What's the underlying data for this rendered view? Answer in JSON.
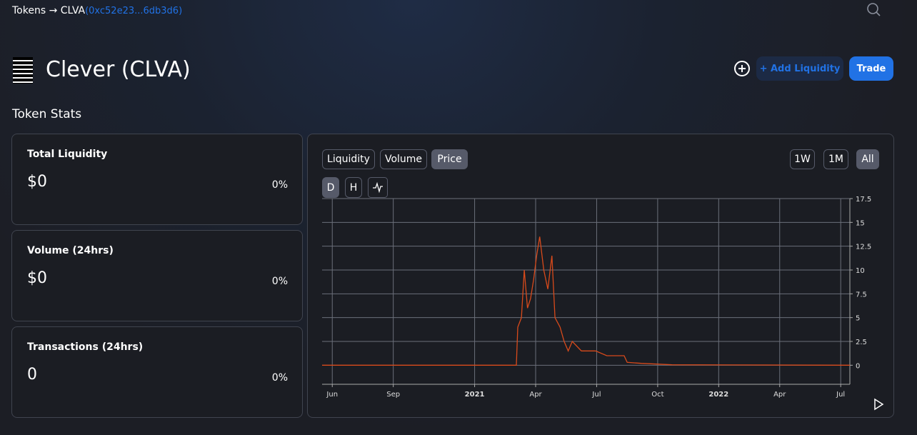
{
  "breadcrumb": {
    "root": "Tokens",
    "arrow": "→",
    "token": "CLVA",
    "address": "(0xc52e23...6db3d6)"
  },
  "header": {
    "title": "Clever (CLVA)",
    "add_liquidity": "+ Add Liquidity",
    "trade": "Trade"
  },
  "section_title": "Token Stats",
  "stats": [
    {
      "label": "Total Liquidity",
      "value": "$0",
      "change": "0%"
    },
    {
      "label": "Volume (24hrs)",
      "value": "$0",
      "change": "0%"
    },
    {
      "label": "Transactions (24hrs)",
      "value": "0",
      "change": "0%"
    }
  ],
  "chart_tabs": [
    "Liquidity",
    "Volume",
    "Price"
  ],
  "ranges": [
    "1W",
    "1M",
    "All"
  ],
  "intervals": [
    "D",
    "H"
  ],
  "chart_data": {
    "type": "line",
    "grid": true,
    "x": [
      -0.5,
      9.05,
      9.12,
      9.3,
      9.44,
      9.6,
      9.75,
      9.9,
      10.05,
      10.2,
      10.4,
      10.6,
      10.8,
      10.95,
      11.2,
      11.4,
      11.6,
      11.8,
      12.25,
      12.95,
      13.5,
      14.35,
      14.5,
      15.2,
      16.7,
      25.45
    ],
    "series": [
      {
        "name": "Price",
        "color": "#d84a1b",
        "values": [
          0,
          0,
          4,
          5,
          10,
          6,
          7,
          9,
          11.5,
          13.5,
          10,
          8,
          11.5,
          5,
          4,
          2.5,
          1.5,
          2.5,
          1.5,
          1.5,
          1,
          1,
          0.3,
          0.2,
          0.05,
          0
        ]
      }
    ],
    "xlim": [
      -0.5,
      25.45
    ],
    "xticks": [
      {
        "value": 0,
        "label": "Jun"
      },
      {
        "value": 3,
        "label": "Sep"
      },
      {
        "value": 7,
        "label": "2021"
      },
      {
        "value": 10,
        "label": "Apr"
      },
      {
        "value": 13,
        "label": "Jul"
      },
      {
        "value": 16,
        "label": "Oct"
      },
      {
        "value": 19,
        "label": "2022"
      },
      {
        "value": 22,
        "label": "Apr"
      },
      {
        "value": 25,
        "label": "Jul"
      }
    ],
    "ylim": [
      -2,
      17.5
    ],
    "yticks": [
      0,
      2.5,
      5,
      7.5,
      10,
      12.5,
      15,
      17.5
    ]
  }
}
